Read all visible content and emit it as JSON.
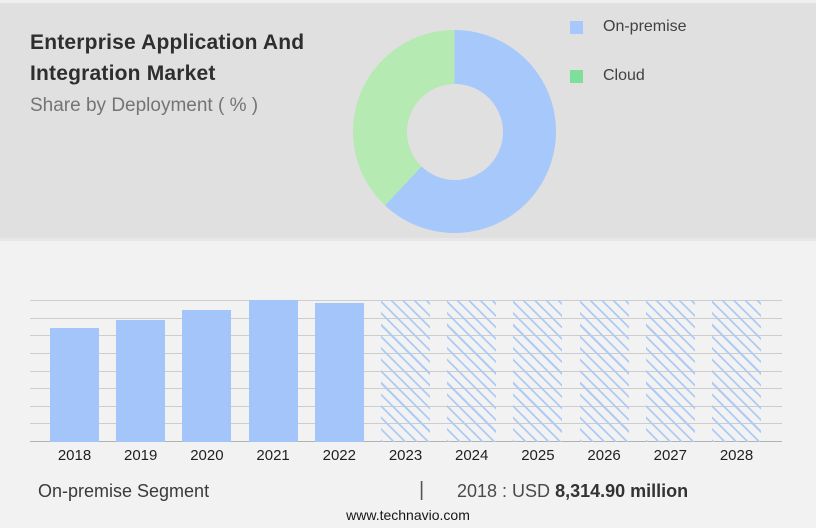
{
  "header": {
    "title_line1": "Enterprise Application And",
    "title_line2": "Integration Market",
    "subtitle": "Share by Deployment ( % )"
  },
  "legend": {
    "items": [
      {
        "label": "On-premise"
      },
      {
        "label": "Cloud"
      }
    ]
  },
  "chart_data": [
    {
      "type": "pie",
      "donut": true,
      "title": "Share by Deployment ( % )",
      "labels": [
        "On-premise",
        "Cloud"
      ],
      "values": [
        62,
        38
      ],
      "slice_colors": [
        "#a6c8fb",
        "#b5eab2"
      ],
      "legend_colors": [
        "#a6c8fb",
        "#7ddf9a"
      ],
      "legend_position": "right",
      "start_angle_deg": 0,
      "note": "no numeric labels shown on chart; shares estimated from arc angles"
    },
    {
      "type": "bar",
      "title": "On-premise Segment market size by year",
      "xlabel": "",
      "ylabel": "",
      "y_axis_labels_shown": false,
      "gridline_count": 9,
      "bar_color": "#a4c5f9",
      "hatch_color": "#aecbf4",
      "bars": [
        {
          "year": "2018",
          "height_pct_of_max": 80,
          "forecast": false
        },
        {
          "year": "2019",
          "height_pct_of_max": 86,
          "forecast": false
        },
        {
          "year": "2020",
          "height_pct_of_max": 93,
          "forecast": false
        },
        {
          "year": "2021",
          "height_pct_of_max": 100,
          "forecast": false
        },
        {
          "year": "2022",
          "height_pct_of_max": 98,
          "forecast": false
        },
        {
          "year": "2023",
          "height_pct_of_max": 100,
          "forecast": true
        },
        {
          "year": "2024",
          "height_pct_of_max": 100,
          "forecast": true
        },
        {
          "year": "2025",
          "height_pct_of_max": 100,
          "forecast": true
        },
        {
          "year": "2026",
          "height_pct_of_max": 100,
          "forecast": true
        },
        {
          "year": "2027",
          "height_pct_of_max": 100,
          "forecast": true
        },
        {
          "year": "2028",
          "height_pct_of_max": 100,
          "forecast": true
        }
      ],
      "annotation": {
        "year": "2018",
        "value": "USD 8,314.90 million"
      }
    }
  ],
  "caption": {
    "segment_label": "On-premise Segment",
    "separator": "|",
    "value_prefix": "2018 : USD ",
    "value_bold": "8,314.90 million"
  },
  "footer": {
    "website": "www.technavio.com"
  }
}
